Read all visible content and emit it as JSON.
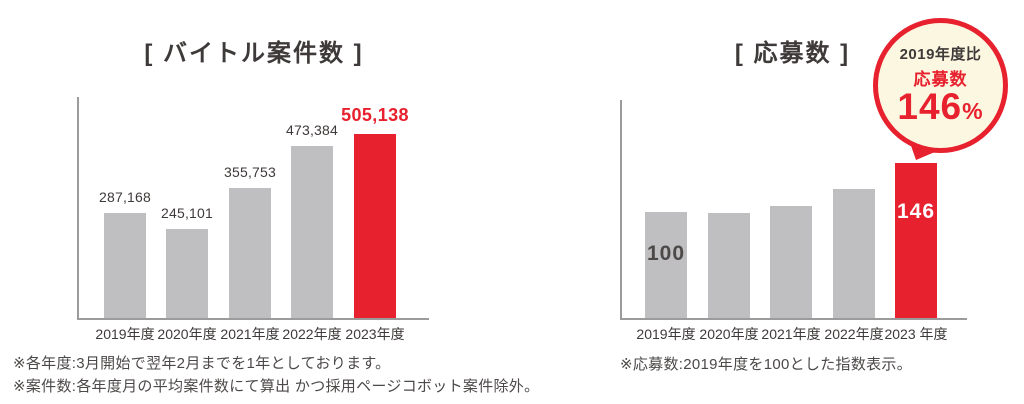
{
  "colors": {
    "red": "#e7212e",
    "bar_gray": "#bfbfc1",
    "axis_gray": "#9b9b9b",
    "text_dark": "#3e3a39",
    "footnote_gray": "#4c4948",
    "badge_cream": "#fcf7e1",
    "background": "#ffffff"
  },
  "left_chart": {
    "title": "[ バイトル案件数 ]",
    "footnote1": "※各年度:3月開始で翌年2月までを1年としております。",
    "footnote2": "※案件数:各年度月の平均案件数にて算出 かつ採用ページコボット案件除外。"
  },
  "right_chart": {
    "title": "[ 応募数 ]",
    "footnote": "※応募数:2019年度を100とした指数表示。",
    "badge": {
      "line1": "2019年度比",
      "line2": "応募数",
      "value": "146",
      "unit": "%"
    }
  },
  "chart_data": [
    {
      "type": "bar",
      "title": "[ バイトル案件数 ]",
      "categories": [
        "2019年度",
        "2020年度",
        "2021年度",
        "2022年度",
        "2023年度"
      ],
      "values": [
        287168,
        245101,
        355753,
        473384,
        505138
      ],
      "value_labels": [
        "287,168",
        "245,101",
        "355,753",
        "473,384",
        "505,138"
      ],
      "highlight_index": 4,
      "bar_color": "#bfbfc1",
      "highlight_color": "#e7212e",
      "xlabel": "",
      "ylabel": "",
      "ylim": [
        0,
        505138
      ],
      "grid": false,
      "legend": false
    },
    {
      "type": "bar",
      "title": "[ 応募数 ]",
      "categories": [
        "2019年度",
        "2020年度",
        "2021年度",
        "2022年度",
        "2023 年度"
      ],
      "values": [
        100,
        99,
        106,
        122,
        146
      ],
      "shown_value_labels": [
        {
          "index": 0,
          "text": "100",
          "placement": "inside-bottom",
          "color": "#4c4948"
        },
        {
          "index": 4,
          "text": "146",
          "placement": "inside-top",
          "color": "#ffffff"
        }
      ],
      "highlight_index": 4,
      "bar_color": "#bfbfc1",
      "highlight_color": "#e7212e",
      "xlabel": "",
      "ylabel": "",
      "ylim": [
        0,
        160
      ],
      "grid": false,
      "legend": false
    }
  ]
}
